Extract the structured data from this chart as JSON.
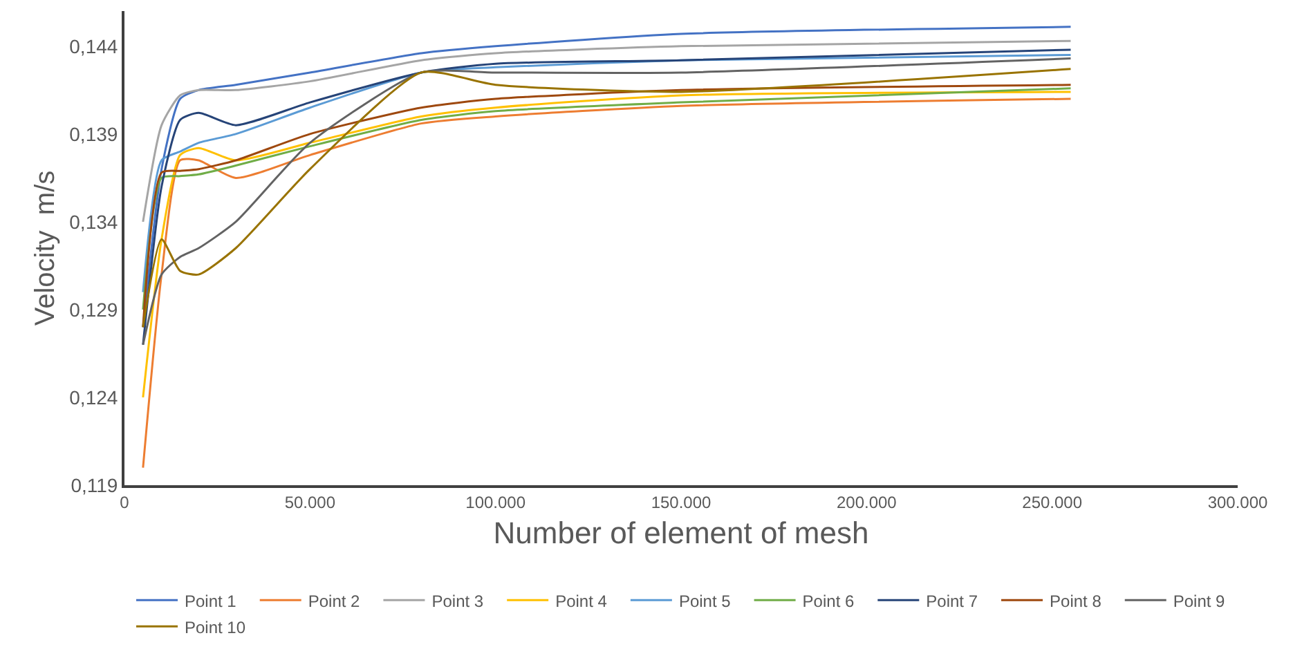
{
  "chart_data": {
    "type": "line",
    "xlabel": "Number of element of mesh",
    "ylabel": "Velocity  m/s",
    "xlim": [
      0,
      300000
    ],
    "ylim": [
      0.119,
      0.146
    ],
    "xticks": [
      0,
      {
        "value": 50000,
        "label": "50.000"
      },
      {
        "value": 100000,
        "label": "100.000"
      },
      {
        "value": 150000,
        "label": "150.000"
      },
      {
        "value": 200000,
        "label": "200.000"
      },
      {
        "value": 250000,
        "label": "250.000"
      },
      {
        "value": 300000,
        "label": "300.000"
      }
    ],
    "yticks": [
      {
        "value": 0.119,
        "label": "0,119"
      },
      {
        "value": 0.124,
        "label": "0,124"
      },
      {
        "value": 0.129,
        "label": "0,129"
      },
      {
        "value": 0.134,
        "label": "0,134"
      },
      {
        "value": 0.139,
        "label": "0,139"
      },
      {
        "value": 0.144,
        "label": "0,144"
      }
    ],
    "grid": false,
    "legend": "bottom",
    "marker": "none",
    "line_style": "solid",
    "x": [
      5000,
      10000,
      15000,
      20000,
      30000,
      50000,
      80000,
      100000,
      150000,
      255000
    ],
    "series": [
      {
        "name": "Point 1",
        "color": "#4472c4",
        "values": [
          0.128,
          0.137,
          0.141,
          0.1415,
          0.1418,
          0.1425,
          0.1436,
          0.144,
          0.1447,
          0.1451
        ]
      },
      {
        "name": "Point 2",
        "color": "#ed7d31",
        "values": [
          0.12,
          0.131,
          0.1375,
          0.1375,
          0.1365,
          0.1378,
          0.1396,
          0.14,
          0.1406,
          0.141
        ]
      },
      {
        "name": "Point 3",
        "color": "#a5a5a5",
        "values": [
          0.134,
          0.1395,
          0.1412,
          0.1415,
          0.1415,
          0.142,
          0.1432,
          0.1436,
          0.144,
          0.1443
        ]
      },
      {
        "name": "Point 4",
        "color": "#ffc000",
        "values": [
          0.124,
          0.133,
          0.1378,
          0.1382,
          0.1375,
          0.1385,
          0.14,
          0.1405,
          0.1412,
          0.1414
        ]
      },
      {
        "name": "Point 5",
        "color": "#5b9bd5",
        "values": [
          0.13,
          0.1375,
          0.138,
          0.1385,
          0.139,
          0.1405,
          0.1425,
          0.1428,
          0.1432,
          0.1435
        ]
      },
      {
        "name": "Point 6",
        "color": "#70ad47",
        "values": [
          0.129,
          0.1365,
          0.1366,
          0.1367,
          0.1372,
          0.1383,
          0.1398,
          0.1403,
          0.1408,
          0.1416
        ]
      },
      {
        "name": "Point 7",
        "color": "#264478",
        "values": [
          0.127,
          0.136,
          0.1398,
          0.1402,
          0.1395,
          0.1408,
          0.1425,
          0.143,
          0.1432,
          0.1438
        ]
      },
      {
        "name": "Point 8",
        "color": "#9e480e",
        "values": [
          0.128,
          0.1368,
          0.1369,
          0.137,
          0.1375,
          0.139,
          0.1405,
          0.141,
          0.1415,
          0.1418
        ]
      },
      {
        "name": "Point 9",
        "color": "#636363",
        "values": [
          0.127,
          0.131,
          0.132,
          0.1325,
          0.134,
          0.1385,
          0.1425,
          0.1425,
          0.1425,
          0.1433
        ]
      },
      {
        "name": "Point 10",
        "color": "#997300",
        "values": [
          0.128,
          0.133,
          0.1312,
          0.131,
          0.1325,
          0.137,
          0.1425,
          0.1418,
          0.1414,
          0.1427
        ]
      }
    ]
  }
}
